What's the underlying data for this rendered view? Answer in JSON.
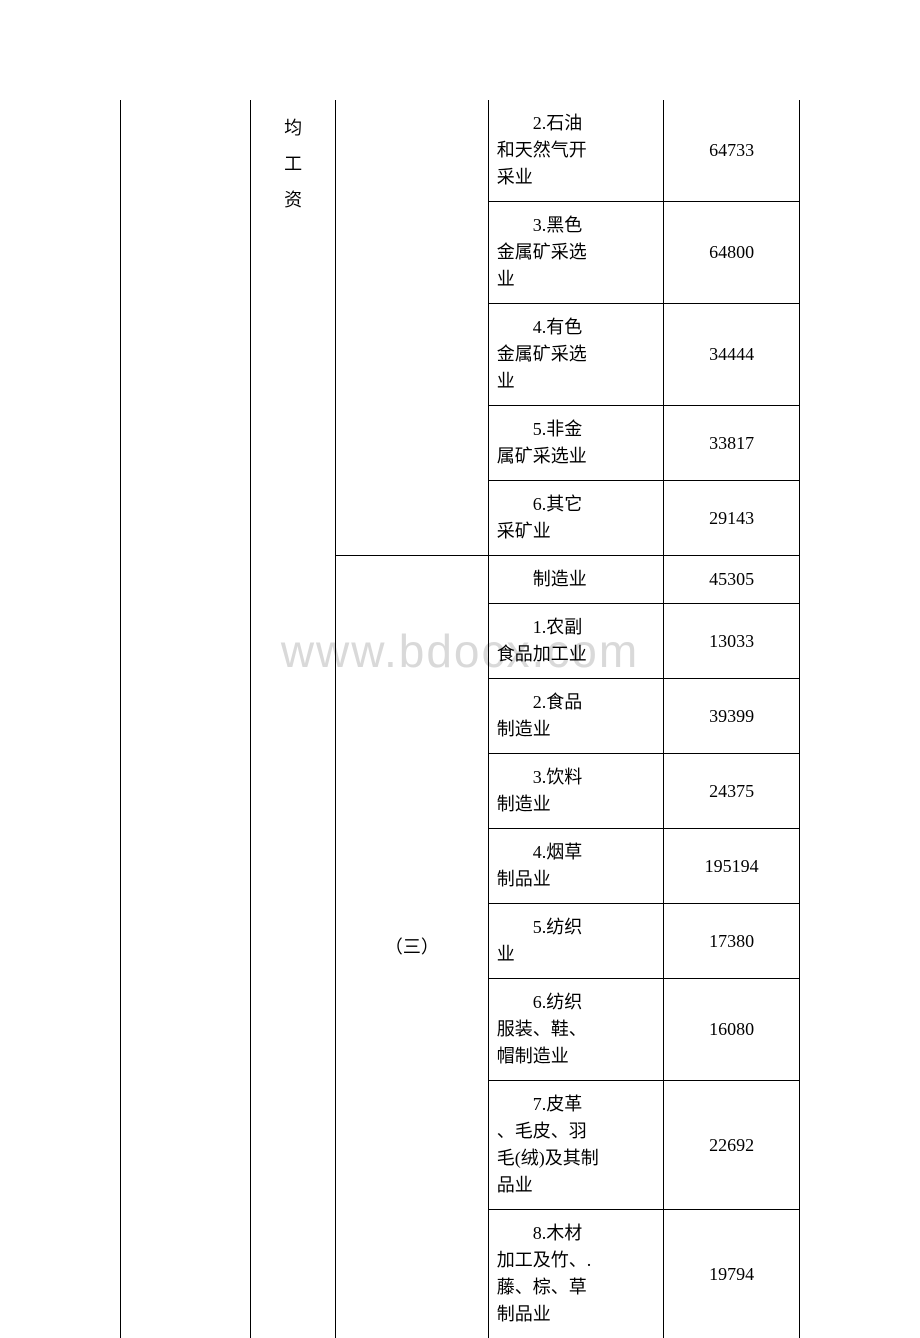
{
  "watermark": "www.bdocx.com",
  "col2_chars": [
    "均",
    "工",
    "资"
  ],
  "section3_label": "（三）",
  "rows": [
    {
      "label_line1": "　　2.石油",
      "label_line2": "和天然气开",
      "label_line3": "采业",
      "value": "64733"
    },
    {
      "label_line1": "　　3.黑色",
      "label_line2": "金属矿采选",
      "label_line3": "业",
      "value": "64800"
    },
    {
      "label_line1": "　　4.有色",
      "label_line2": "金属矿采选",
      "label_line3": "业",
      "value": "34444"
    },
    {
      "label_line1": "　　5.非金",
      "label_line2": "属矿采选业",
      "label_line3": "",
      "value": "33817"
    },
    {
      "label_line1": "　　6.其它",
      "label_line2": "采矿业",
      "label_line3": "",
      "value": "29143"
    },
    {
      "label_line1": "　　制造业",
      "label_line2": "",
      "label_line3": "",
      "value": "45305"
    },
    {
      "label_line1": "　　1.农副",
      "label_line2": "食品加工业",
      "label_line3": "",
      "value": "13033"
    },
    {
      "label_line1": "　　2.食品",
      "label_line2": "制造业",
      "label_line3": "",
      "value": "39399"
    },
    {
      "label_line1": "　　3.饮料",
      "label_line2": "制造业",
      "label_line3": "",
      "value": "24375"
    },
    {
      "label_line1": "　　4.烟草",
      "label_line2": "制品业",
      "label_line3": "",
      "value": "195194"
    },
    {
      "label_line1": "　　5.纺织",
      "label_line2": "业",
      "label_line3": "",
      "value": "17380"
    },
    {
      "label_line1": "　　6.纺织",
      "label_line2": "服装、鞋、",
      "label_line3": "帽制造业",
      "value": "16080"
    },
    {
      "label_line1": "　　7.皮革",
      "label_line2": "、毛皮、羽",
      "label_line3": "毛(绒)及其制",
      "label_line4": "品业",
      "value": "22692"
    },
    {
      "label_line1": "　　8.木材",
      "label_line2": "加工及竹、.",
      "label_line3": "藤、棕、草",
      "label_line4": "制品业",
      "value": "19794"
    }
  ],
  "styles": {
    "border_color": "#000000",
    "text_color": "#000000",
    "background_color": "#ffffff",
    "watermark_color": "#d9d9d9",
    "font_size_cell": 18,
    "font_size_watermark": 46
  }
}
